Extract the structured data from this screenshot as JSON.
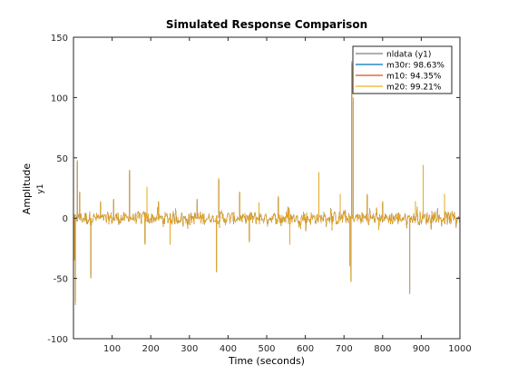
{
  "chart_data": {
    "type": "line",
    "title": "Simulated Response Comparison",
    "xlabel": "Time (seconds)",
    "ylabel": "Amplitude",
    "channel_label": "y1",
    "xlim": [
      0,
      1000
    ],
    "ylim": [
      -100,
      150
    ],
    "xticks": [
      100,
      200,
      300,
      400,
      500,
      600,
      700,
      800,
      900,
      1000
    ],
    "yticks": [
      -100,
      -50,
      0,
      50,
      100,
      150
    ],
    "grid": false,
    "legend_position": "top-right",
    "series": [
      {
        "name": "nldata (y1)",
        "color": "#7f7f7f",
        "x": [
          2,
          5,
          10,
          16,
          45,
          70,
          104,
          145,
          185,
          190,
          220,
          250,
          320,
          370,
          376,
          430,
          455,
          480,
          530,
          560,
          635,
          690,
          715,
          718,
          720,
          724,
          760,
          790,
          800,
          870,
          885,
          905,
          960,
          990
        ],
        "values": [
          -35,
          -72,
          48,
          22,
          -50,
          14,
          16,
          40,
          -22,
          26,
          14,
          -22,
          16,
          -45,
          33,
          22,
          -20,
          13,
          18,
          -22,
          38,
          20,
          -40,
          -53,
          130,
          100,
          20,
          -10,
          14,
          -63,
          14,
          44,
          20,
          -8
        ]
      },
      {
        "name": "m30r: 98.63%",
        "color": "#0072bd",
        "x": [
          2,
          5,
          10,
          16,
          45,
          70,
          104,
          145,
          185,
          190,
          220,
          250,
          320,
          370,
          376,
          430,
          455,
          480,
          530,
          560,
          635,
          690,
          715,
          718,
          720,
          724,
          760,
          790,
          800,
          870,
          885,
          905,
          960,
          990
        ],
        "values": [
          -34,
          -70,
          47,
          21,
          -49,
          13,
          15,
          39,
          -21,
          25,
          13,
          -21,
          15,
          -44,
          32,
          21,
          -19,
          12,
          17,
          -21,
          37,
          19,
          -39,
          -52,
          128,
          98,
          19,
          -9,
          13,
          -62,
          13,
          43,
          19,
          -7
        ]
      },
      {
        "name": "m10: 94.35%",
        "color": "#d95319",
        "x": [
          2,
          5,
          10,
          16,
          45,
          70,
          104,
          145,
          185,
          190,
          220,
          250,
          320,
          370,
          376,
          430,
          455,
          480,
          530,
          560,
          635,
          690,
          715,
          718,
          720,
          724,
          760,
          790,
          800,
          870,
          885,
          905,
          960,
          990
        ],
        "values": [
          -33,
          -68,
          45,
          20,
          -47,
          12,
          14,
          37,
          -20,
          24,
          12,
          -20,
          14,
          -42,
          31,
          20,
          -18,
          11,
          16,
          -20,
          35,
          18,
          -37,
          -50,
          124,
          95,
          18,
          -8,
          12,
          -60,
          12,
          41,
          18,
          -6
        ]
      },
      {
        "name": "m20: 99.21%",
        "color": "#edb120",
        "x": [
          2,
          5,
          10,
          16,
          45,
          70,
          104,
          145,
          185,
          190,
          220,
          250,
          320,
          370,
          376,
          430,
          455,
          480,
          530,
          560,
          635,
          690,
          715,
          718,
          720,
          724,
          760,
          790,
          800,
          870,
          885,
          905,
          960,
          990
        ],
        "values": [
          -35,
          -72,
          48,
          22,
          -50,
          14,
          16,
          40,
          -22,
          26,
          14,
          -22,
          16,
          -45,
          33,
          22,
          -20,
          13,
          18,
          -22,
          38,
          20,
          -40,
          -53,
          130,
          100,
          20,
          -10,
          14,
          -63,
          14,
          44,
          20,
          -8
        ]
      }
    ]
  }
}
